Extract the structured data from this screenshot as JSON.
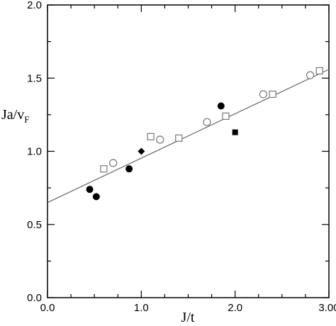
{
  "chart_data": {
    "type": "scatter",
    "title": "",
    "xlabel": "J/t",
    "ylabel_main": "Ja/v",
    "ylabel_sub": "F",
    "xlim": [
      0.0,
      3.0
    ],
    "ylim": [
      0.0,
      2.0
    ],
    "x_ticks": [
      0.0,
      1.0,
      2.0,
      3.0
    ],
    "x_tick_labels": [
      "0.0",
      "1.0",
      "2.0",
      "3.00"
    ],
    "y_ticks": [
      0.0,
      0.5,
      1.0,
      1.5,
      2.0
    ],
    "y_tick_labels": [
      "0.0",
      "0.5",
      "1.0",
      "1.5",
      "2.0"
    ],
    "grid": false,
    "fit_line": {
      "x": [
        0.0,
        3.0
      ],
      "y": [
        0.65,
        1.56
      ],
      "color": "#666666"
    },
    "series": [
      {
        "marker": "filled-circle",
        "points": [
          {
            "x": 0.45,
            "y": 0.74
          },
          {
            "x": 0.52,
            "y": 0.69
          },
          {
            "x": 0.87,
            "y": 0.88
          },
          {
            "x": 1.85,
            "y": 1.31
          }
        ]
      },
      {
        "marker": "open-circle",
        "points": [
          {
            "x": 0.7,
            "y": 0.92
          },
          {
            "x": 1.2,
            "y": 1.08
          },
          {
            "x": 1.7,
            "y": 1.2
          },
          {
            "x": 2.3,
            "y": 1.39
          },
          {
            "x": 2.8,
            "y": 1.52
          }
        ]
      },
      {
        "marker": "open-square",
        "points": [
          {
            "x": 0.6,
            "y": 0.88
          },
          {
            "x": 1.1,
            "y": 1.1
          },
          {
            "x": 1.4,
            "y": 1.09
          },
          {
            "x": 1.9,
            "y": 1.24
          },
          {
            "x": 2.4,
            "y": 1.39
          },
          {
            "x": 2.9,
            "y": 1.55
          }
        ]
      },
      {
        "marker": "filled-diamond",
        "points": [
          {
            "x": 1.0,
            "y": 1.0
          }
        ]
      },
      {
        "marker": "filled-square",
        "points": [
          {
            "x": 2.0,
            "y": 1.13
          }
        ]
      }
    ],
    "colors": {
      "axis": "#000000",
      "marker": "#000000",
      "open_marker_stroke": "#777777"
    }
  }
}
